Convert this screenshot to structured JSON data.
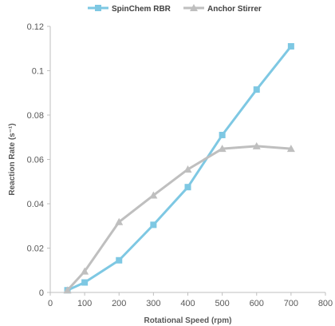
{
  "chart_data": {
    "type": "line",
    "xlabel": "Rotational Speed (rpm)",
    "ylabel": "Reaction Rate (s⁻¹)",
    "xlim": [
      0,
      800
    ],
    "ylim": [
      0,
      0.12
    ],
    "xticks": [
      0,
      100,
      200,
      300,
      400,
      500,
      600,
      700,
      800
    ],
    "yticks": [
      0,
      0.02,
      0.04,
      0.06,
      0.08,
      0.1,
      0.12
    ],
    "xtick_labels": [
      "0",
      "100",
      "200",
      "300",
      "400",
      "500",
      "600",
      "700",
      "800"
    ],
    "ytick_labels": [
      "0",
      "0.02",
      "0.04",
      "0.06",
      "0.08",
      "0.1",
      "0.12"
    ],
    "grid": false,
    "legend_position": "top",
    "series": [
      {
        "name": "SpinChem RBR",
        "color": "#7ec8e3",
        "marker": "square",
        "x": [
          50,
          100,
          200,
          300,
          400,
          500,
          600,
          700
        ],
        "y": [
          0.001,
          0.0045,
          0.0145,
          0.0305,
          0.0475,
          0.071,
          0.0915,
          0.111
        ]
      },
      {
        "name": "Anchor Stirrer",
        "color": "#bfbfbf",
        "marker": "triangle",
        "x": [
          50,
          100,
          200,
          300,
          400,
          500,
          600,
          700
        ],
        "y": [
          0.001,
          0.0095,
          0.0318,
          0.0438,
          0.0555,
          0.0648,
          0.066,
          0.0648
        ]
      }
    ]
  }
}
